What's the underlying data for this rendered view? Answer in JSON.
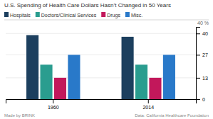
{
  "chart_data": {
    "type": "bar",
    "title": "U.S. Spending of Health Care Dollars Hasn’t Changed in 50 Years",
    "categories": [
      "1960",
      "2014"
    ],
    "series": [
      {
        "name": "Hospitals",
        "color": "#1c3f5e",
        "values": [
          39,
          38
        ]
      },
      {
        "name": "Doctors/Clinical Services",
        "color": "#2a9d8f",
        "values": [
          21,
          21
        ]
      },
      {
        "name": "Drugs",
        "color": "#c2185b",
        "values": [
          13,
          13
        ]
      },
      {
        "name": "Misc.",
        "color": "#2979c9",
        "values": [
          27,
          27
        ]
      }
    ],
    "ylim": [
      0,
      44
    ],
    "yticks": [
      0,
      13,
      27,
      40
    ],
    "grid": true,
    "legend": "top",
    "annotations": [
      "40 %",
      "Made by BRINK",
      "Data: California Healthcare Foundation"
    ]
  }
}
